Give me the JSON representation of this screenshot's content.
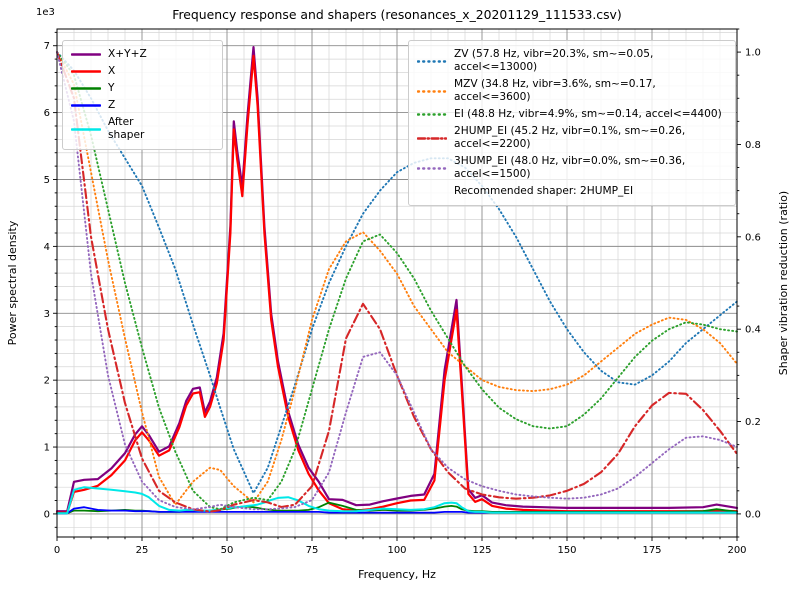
{
  "chart_data": {
    "type": "line",
    "title": "Frequency response and shapers (resonances_x_20201129_111533.csv)",
    "x_axis": {
      "label": "Frequency, Hz",
      "min": 0,
      "max": 200,
      "major_step": 25,
      "minor_step": 5,
      "tick_values": [
        0,
        25,
        50,
        75,
        100,
        125,
        150,
        175,
        200
      ],
      "tick_labels": [
        "0",
        "25",
        "50",
        "75",
        "100",
        "125",
        "150",
        "175",
        "200"
      ]
    },
    "y_left": {
      "label": "Power spectral density",
      "offset_label": "1e3",
      "unit_multiplier": 1000,
      "min": -0.345,
      "max": 7.25,
      "major_step": 1,
      "minor_step": 0.2,
      "tick_values": [
        0,
        1,
        2,
        3,
        4,
        5,
        6,
        7
      ],
      "tick_labels": [
        "0",
        "1",
        "2",
        "3",
        "4",
        "5",
        "6",
        "7"
      ]
    },
    "y_right": {
      "label": "Shaper vibration reduction (ratio)",
      "min": -0.05,
      "max": 1.05,
      "major_step": 0.2,
      "minor_step": 0.05,
      "tick_values": [
        0,
        0.2,
        0.4,
        0.6,
        0.8,
        1.0
      ],
      "tick_labels": [
        "0.0",
        "0.2",
        "0.4",
        "0.6",
        "0.8",
        "1.0"
      ]
    },
    "grid": {
      "major_color": "#8c8c8c",
      "minor_color": "#d6d6d6"
    },
    "psd": {
      "axis": "left",
      "x": [
        0,
        3,
        5,
        8,
        12,
        16,
        20,
        23,
        25,
        27,
        30,
        33,
        36,
        38,
        40,
        42,
        43.5,
        45,
        47,
        49,
        51,
        52,
        53,
        54.5,
        56,
        57.8,
        59,
        61,
        63,
        65,
        68,
        71,
        74,
        77,
        80,
        84,
        88,
        92,
        96,
        100,
        104,
        108,
        111,
        114,
        116,
        117.5,
        119,
        121,
        123,
        125,
        128,
        132,
        137,
        143,
        150,
        160,
        170,
        180,
        190,
        194,
        200
      ],
      "series": [
        {
          "name": "X+Y+Z",
          "color": "#800080",
          "style": "solid",
          "width": 2.2,
          "values": [
            0.04,
            0.04,
            0.48,
            0.51,
            0.52,
            0.68,
            0.91,
            1.19,
            1.31,
            1.18,
            0.93,
            1.01,
            1.36,
            1.69,
            1.87,
            1.89,
            1.52,
            1.68,
            2.04,
            2.7,
            4.31,
            5.87,
            5.43,
            4.89,
            5.94,
            6.98,
            6.22,
            4.3,
            2.99,
            2.28,
            1.53,
            1.03,
            0.69,
            0.48,
            0.22,
            0.21,
            0.13,
            0.14,
            0.19,
            0.23,
            0.27,
            0.29,
            0.6,
            2.15,
            2.75,
            3.2,
            2.0,
            0.37,
            0.24,
            0.28,
            0.17,
            0.13,
            0.11,
            0.1,
            0.09,
            0.09,
            0.09,
            0.09,
            0.1,
            0.14,
            0.09
          ]
        },
        {
          "name": "X",
          "color": "#ff0000",
          "style": "solid",
          "width": 2.2,
          "values": [
            0.02,
            0.02,
            0.33,
            0.36,
            0.42,
            0.58,
            0.8,
            1.1,
            1.22,
            1.1,
            0.87,
            0.95,
            1.3,
            1.62,
            1.8,
            1.82,
            1.45,
            1.6,
            1.95,
            2.6,
            4.2,
            5.75,
            5.3,
            4.75,
            5.8,
            6.85,
            6.1,
            4.2,
            2.9,
            2.2,
            1.45,
            0.95,
            0.6,
            0.35,
            0.16,
            0.07,
            0.05,
            0.07,
            0.11,
            0.16,
            0.2,
            0.21,
            0.5,
            2.0,
            2.6,
            3.05,
            1.9,
            0.3,
            0.18,
            0.22,
            0.12,
            0.08,
            0.06,
            0.05,
            0.04,
            0.04,
            0.04,
            0.04,
            0.04,
            0.05,
            0.04
          ]
        },
        {
          "name": "Y",
          "color": "#008000",
          "style": "solid",
          "width": 1.8,
          "values": [
            0.01,
            0.01,
            0.05,
            0.05,
            0.04,
            0.05,
            0.06,
            0.05,
            0.05,
            0.04,
            0.03,
            0.03,
            0.03,
            0.04,
            0.04,
            0.04,
            0.04,
            0.05,
            0.06,
            0.07,
            0.08,
            0.09,
            0.1,
            0.11,
            0.11,
            0.1,
            0.09,
            0.07,
            0.06,
            0.05,
            0.05,
            0.05,
            0.06,
            0.1,
            0.17,
            0.12,
            0.06,
            0.05,
            0.06,
            0.05,
            0.05,
            0.06,
            0.08,
            0.11,
            0.12,
            0.11,
            0.07,
            0.05,
            0.04,
            0.04,
            0.03,
            0.03,
            0.03,
            0.03,
            0.03,
            0.03,
            0.03,
            0.03,
            0.04,
            0.07,
            0.03
          ]
        },
        {
          "name": "Z",
          "color": "#0000ff",
          "style": "solid",
          "width": 1.8,
          "values": [
            0.01,
            0.01,
            0.08,
            0.1,
            0.06,
            0.05,
            0.05,
            0.04,
            0.04,
            0.04,
            0.03,
            0.03,
            0.03,
            0.03,
            0.03,
            0.03,
            0.03,
            0.03,
            0.03,
            0.03,
            0.03,
            0.03,
            0.03,
            0.03,
            0.03,
            0.03,
            0.03,
            0.03,
            0.03,
            0.03,
            0.03,
            0.03,
            0.03,
            0.03,
            0.02,
            0.02,
            0.02,
            0.02,
            0.02,
            0.02,
            0.02,
            0.02,
            0.02,
            0.03,
            0.03,
            0.03,
            0.03,
            0.02,
            0.02,
            0.02,
            0.02,
            0.02,
            0.02,
            0.02,
            0.02,
            0.02,
            0.02,
            0.02,
            0.02,
            0.02,
            0.02
          ]
        },
        {
          "name": "After shaper",
          "color": "#00e8e8",
          "style": "solid",
          "width": 2.0,
          "values": [
            0.01,
            0.01,
            0.36,
            0.4,
            0.38,
            0.36,
            0.34,
            0.32,
            0.3,
            0.25,
            0.12,
            0.06,
            0.05,
            0.06,
            0.06,
            0.05,
            0.05,
            0.05,
            0.06,
            0.08,
            0.09,
            0.1,
            0.1,
            0.11,
            0.12,
            0.13,
            0.14,
            0.17,
            0.21,
            0.24,
            0.25,
            0.2,
            0.12,
            0.07,
            0.05,
            0.04,
            0.04,
            0.06,
            0.08,
            0.07,
            0.06,
            0.07,
            0.1,
            0.16,
            0.17,
            0.16,
            0.1,
            0.04,
            0.03,
            0.03,
            0.02,
            0.02,
            0.02,
            0.02,
            0.02,
            0.02,
            0.02,
            0.02,
            0.02,
            0.02,
            0.02
          ]
        }
      ]
    },
    "shapers": {
      "axis": "right",
      "x": [
        0,
        5,
        10,
        15,
        20,
        25,
        30,
        34.8,
        40,
        45,
        48,
        52,
        57.8,
        62,
        66,
        70,
        75,
        80,
        85,
        90,
        95,
        100,
        105,
        110,
        115,
        120,
        125,
        130,
        135,
        140,
        145,
        150,
        155,
        160,
        165,
        170,
        175,
        180,
        185,
        190,
        195,
        200
      ],
      "series": [
        {
          "name": "ZV",
          "color": "#1f77b4",
          "style": "dotted",
          "width": 1.9,
          "values": [
            1.0,
            0.96,
            0.9,
            0.83,
            0.77,
            0.71,
            0.62,
            0.53,
            0.41,
            0.3,
            0.23,
            0.14,
            0.045,
            0.1,
            0.19,
            0.28,
            0.4,
            0.5,
            0.58,
            0.65,
            0.7,
            0.74,
            0.76,
            0.77,
            0.77,
            0.75,
            0.71,
            0.66,
            0.6,
            0.53,
            0.46,
            0.4,
            0.35,
            0.31,
            0.285,
            0.28,
            0.3,
            0.33,
            0.37,
            0.4,
            0.43,
            0.46
          ]
        },
        {
          "name": "MZV",
          "color": "#ff7f0e",
          "style": "dotted",
          "width": 1.9,
          "values": [
            1.0,
            0.93,
            0.74,
            0.55,
            0.38,
            0.22,
            0.08,
            0.02,
            0.07,
            0.1,
            0.095,
            0.06,
            0.025,
            0.07,
            0.16,
            0.27,
            0.42,
            0.53,
            0.59,
            0.61,
            0.57,
            0.52,
            0.45,
            0.4,
            0.35,
            0.32,
            0.29,
            0.275,
            0.268,
            0.266,
            0.27,
            0.28,
            0.3,
            0.33,
            0.36,
            0.39,
            0.41,
            0.425,
            0.42,
            0.4,
            0.37,
            0.325
          ]
        },
        {
          "name": "EI",
          "color": "#2ca02c",
          "style": "dotted",
          "width": 1.9,
          "values": [
            1.0,
            0.95,
            0.82,
            0.66,
            0.5,
            0.36,
            0.23,
            0.135,
            0.05,
            0.015,
            0.01,
            0.025,
            0.035,
            0.03,
            0.07,
            0.14,
            0.27,
            0.4,
            0.51,
            0.59,
            0.605,
            0.565,
            0.51,
            0.44,
            0.38,
            0.32,
            0.27,
            0.23,
            0.205,
            0.19,
            0.185,
            0.19,
            0.215,
            0.25,
            0.295,
            0.34,
            0.375,
            0.4,
            0.415,
            0.41,
            0.4,
            0.395
          ]
        },
        {
          "name": "2HUMP_EI",
          "color": "#d62728",
          "style": "dashdot",
          "width": 2.1,
          "values": [
            1.0,
            0.9,
            0.6,
            0.4,
            0.24,
            0.12,
            0.05,
            0.025,
            0.01,
            0.005,
            0.008,
            0.02,
            0.03,
            0.025,
            0.015,
            0.02,
            0.06,
            0.18,
            0.38,
            0.455,
            0.4,
            0.3,
            0.21,
            0.14,
            0.09,
            0.055,
            0.042,
            0.036,
            0.033,
            0.035,
            0.04,
            0.05,
            0.065,
            0.09,
            0.13,
            0.19,
            0.235,
            0.262,
            0.26,
            0.225,
            0.18,
            0.13
          ]
        },
        {
          "name": "3HUMP_EI",
          "color": "#9467bd",
          "style": "dotted",
          "width": 1.9,
          "values": [
            1.0,
            0.85,
            0.52,
            0.3,
            0.15,
            0.07,
            0.03,
            0.015,
            0.01,
            0.015,
            0.02,
            0.015,
            0.01,
            0.01,
            0.012,
            0.015,
            0.03,
            0.09,
            0.22,
            0.34,
            0.35,
            0.3,
            0.22,
            0.14,
            0.1,
            0.075,
            0.06,
            0.05,
            0.042,
            0.038,
            0.035,
            0.033,
            0.035,
            0.042,
            0.055,
            0.08,
            0.11,
            0.14,
            0.165,
            0.168,
            0.16,
            0.145
          ]
        }
      ]
    }
  },
  "legend_left": {
    "items": [
      {
        "label": "X+Y+Z",
        "series": "X+Y+Z"
      },
      {
        "label": "X",
        "series": "X"
      },
      {
        "label": "Y",
        "series": "Y"
      },
      {
        "label": "Z",
        "series": "Z"
      },
      {
        "label": "After shaper",
        "series": "After shaper"
      }
    ]
  },
  "legend_right": {
    "items": [
      {
        "label": "ZV (57.8 Hz, vibr=20.3%, sm~=0.05, accel<=13000)",
        "series": "ZV"
      },
      {
        "label": "MZV (34.8 Hz, vibr=3.6%, sm~=0.17, accel<=3600)",
        "series": "MZV"
      },
      {
        "label": "EI (48.8 Hz, vibr=4.9%, sm~=0.14, accel<=4400)",
        "series": "EI"
      },
      {
        "label": "2HUMP_EI (45.2 Hz, vibr=0.1%, sm~=0.26, accel<=2200)",
        "series": "2HUMP_EI"
      },
      {
        "label": "3HUMP_EI (48.0 Hz, vibr=0.0%, sm~=0.36, accel<=1500)",
        "series": "3HUMP_EI"
      }
    ],
    "note": "Recommended shaper: 2HUMP_EI"
  }
}
